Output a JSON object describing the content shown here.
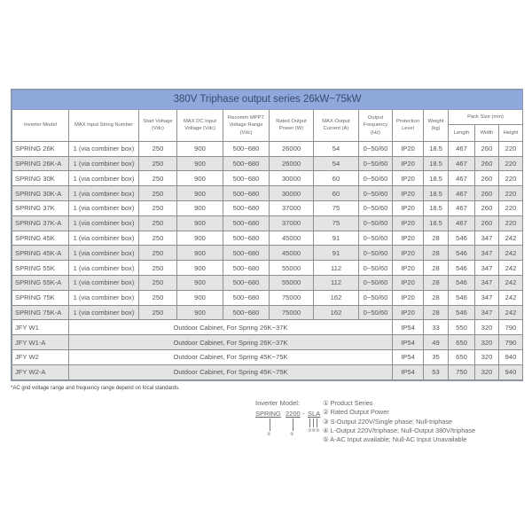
{
  "title": "380V Triphase output series  26kW~75kW",
  "headers": [
    "Inverter Model",
    "MAX Input String Number",
    "Start Voltage (Vdc)",
    "MAX DC Input Voltage (Vdc)",
    "Recomm MPPT Voltage Range (Vdc)",
    "Rated Output Power (W)",
    "MAX Output Current (A)",
    "Output Frequency (Hz)",
    "Protection Level",
    "Weight (kg)",
    "Pack Size (mm)"
  ],
  "pack_headers": [
    "Length",
    "Width",
    "Height"
  ],
  "rows": [
    [
      "SPRING 26K",
      "1 (via combiner box)",
      "250",
      "900",
      "500~680",
      "26000",
      "54",
      "0~50/60",
      "IP20",
      "18.5",
      "467",
      "260",
      "220"
    ],
    [
      "SPRING 26K-A",
      "1 (via combiner box)",
      "250",
      "900",
      "500~680",
      "26000",
      "54",
      "0~50/60",
      "IP20",
      "18.5",
      "467",
      "260",
      "220"
    ],
    [
      "SPRING 30K",
      "1 (via combiner box)",
      "250",
      "900",
      "500~680",
      "30000",
      "60",
      "0~50/60",
      "IP20",
      "18.5",
      "467",
      "260",
      "220"
    ],
    [
      "SPRING 30K-A",
      "1 (via combiner box)",
      "250",
      "900",
      "500~680",
      "30000",
      "60",
      "0~50/60",
      "IP20",
      "18.5",
      "467",
      "260",
      "220"
    ],
    [
      "SPRING 37K",
      "1 (via combiner box)",
      "250",
      "900",
      "500~680",
      "37000",
      "75",
      "0~50/60",
      "IP20",
      "18.5",
      "467",
      "260",
      "220"
    ],
    [
      "SPRING 37K-A",
      "1 (via combiner box)",
      "250",
      "900",
      "500~680",
      "37000",
      "75",
      "0~50/60",
      "IP20",
      "18.5",
      "467",
      "260",
      "220"
    ],
    [
      "SPRING 45K",
      "1 (via combiner box)",
      "250",
      "900",
      "500~680",
      "45000",
      "91",
      "0~50/60",
      "IP20",
      "28",
      "546",
      "347",
      "242"
    ],
    [
      "SPRING 45K-A",
      "1 (via combiner box)",
      "250",
      "900",
      "500~680",
      "45000",
      "91",
      "0~50/60",
      "IP20",
      "28",
      "546",
      "347",
      "242"
    ],
    [
      "SPRING 55K",
      "1 (via combiner box)",
      "250",
      "900",
      "500~680",
      "55000",
      "112",
      "0~50/60",
      "IP20",
      "28",
      "546",
      "347",
      "242"
    ],
    [
      "SPRING 55K-A",
      "1 (via combiner box)",
      "250",
      "900",
      "500~680",
      "55000",
      "112",
      "0~50/60",
      "IP20",
      "28",
      "546",
      "347",
      "242"
    ],
    [
      "SPRING 75K",
      "1 (via combiner box)",
      "250",
      "900",
      "500~680",
      "75000",
      "162",
      "0~50/60",
      "IP20",
      "28",
      "546",
      "347",
      "242"
    ],
    [
      "SPRING 75K-A",
      "1 (via combiner box)",
      "250",
      "900",
      "500~680",
      "75000",
      "162",
      "0~50/60",
      "IP20",
      "28",
      "546",
      "347",
      "242"
    ]
  ],
  "cabinets": [
    [
      "JFY W1",
      "Outdoor Cabinet, For Spring 26K~37K",
      "IP54",
      "33",
      "550",
      "320",
      "790"
    ],
    [
      "JFY W1-A",
      "Outdoor Cabinet, For Spring 26K~37K",
      "IP54",
      "49",
      "650",
      "320",
      "790"
    ],
    [
      "JFY W2",
      "Outdoor Cabinet, For Spring 45K~75K",
      "IP54",
      "35",
      "650",
      "320",
      "940"
    ],
    [
      "JFY W2-A",
      "Outdoor Cabinet, For Spring 45K~75K",
      "IP54",
      "53",
      "750",
      "320",
      "940"
    ]
  ],
  "note": "*AC grid voltage range and frequency range depend on local standards.",
  "model_label": "Inverter Model:",
  "model_code": [
    "SPRING",
    "2200",
    "-",
    "SLA"
  ],
  "model_marks": [
    "①",
    "②",
    "③④⑤"
  ],
  "legend": [
    "① Product Series",
    "② Rated Output Power",
    "③ S-Output 220V/Single phase; Null-triphase",
    "④ L-Output 220V/triphase; Null-Output 380V/triphase",
    "⑤ A-AC Input available; Null-AC Input Unavailable"
  ],
  "colors": {
    "title_bg": "#8fa9dc",
    "alt_row": "#e4e4e4"
  }
}
